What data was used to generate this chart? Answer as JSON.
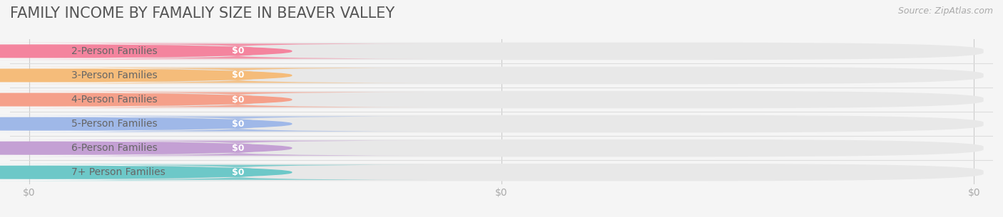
{
  "title": "FAMILY INCOME BY FAMALIY SIZE IN BEAVER VALLEY",
  "source": "Source: ZipAtlas.com",
  "categories": [
    "2-Person Families",
    "3-Person Families",
    "4-Person Families",
    "5-Person Families",
    "6-Person Families",
    "7+ Person Families"
  ],
  "values": [
    0,
    0,
    0,
    0,
    0,
    0
  ],
  "bar_colors": [
    "#f4849e",
    "#f5bc7a",
    "#f5a08a",
    "#9fb8e8",
    "#c4a0d4",
    "#6dc8c8"
  ],
  "dot_colors": [
    "#f4849e",
    "#f5bc7a",
    "#f5a08a",
    "#9fb8e8",
    "#c4a0d4",
    "#6dc8c8"
  ],
  "background_color": "#f5f5f5",
  "bar_bg_color": "#e8e8e8",
  "label_bg_color": "#ffffff",
  "title_fontsize": 15,
  "label_fontsize": 10,
  "value_fontsize": 9,
  "source_fontsize": 9,
  "xlim": [
    0,
    1
  ],
  "tick_label_color": "#aaaaaa",
  "title_color": "#555555",
  "source_color": "#aaaaaa",
  "label_text_color": "#666666",
  "value_text_color": "#ffffff"
}
